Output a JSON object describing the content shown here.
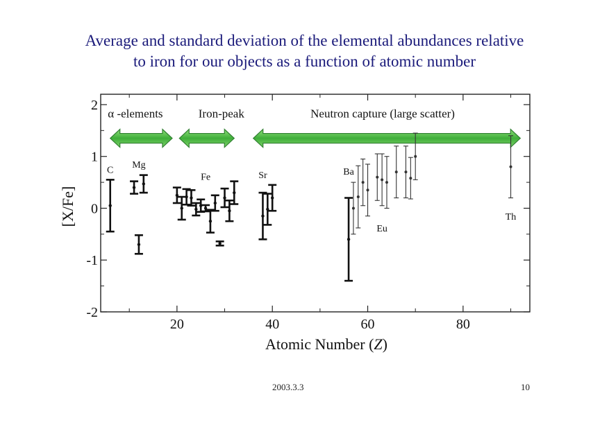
{
  "slide": {
    "title_line1": "Average and standard deviation of the elemental abundances relative",
    "title_line2": "to iron for our objects as a function of atomic number",
    "date": "2003.3.3",
    "page_number": "10",
    "title_color": "#1a1a7a"
  },
  "chart_data": {
    "type": "scatter",
    "title": "",
    "xlabel": "Atomic Number  (Z)",
    "ylabel": "[X/Fe]",
    "xlim": [
      4,
      94
    ],
    "ylim": [
      -2,
      2.2
    ],
    "x_ticks": [
      20,
      40,
      60,
      80
    ],
    "y_ticks": [
      -2,
      -1,
      0,
      1,
      2
    ],
    "x_tick_labels": [
      "20",
      "40",
      "60",
      "80"
    ],
    "y_tick_labels": [
      "-2",
      "-1",
      "0",
      "1",
      "2"
    ],
    "grid": false,
    "arrow_color": "#5cc050",
    "series": [
      {
        "points": [
          {
            "x": 6,
            "y": 0.05,
            "err": 0.5,
            "weight": "heavy"
          },
          {
            "x": 11,
            "y": 0.4,
            "err": 0.12,
            "weight": "heavy"
          },
          {
            "x": 12,
            "y": -0.7,
            "err": 0.18,
            "weight": "heavy"
          },
          {
            "x": 13,
            "y": 0.47,
            "err": 0.17,
            "weight": "heavy"
          },
          {
            "x": 20,
            "y": 0.25,
            "err": 0.15,
            "weight": "heavy"
          },
          {
            "x": 21,
            "y": 0.0,
            "err": 0.22,
            "weight": "heavy"
          },
          {
            "x": 22,
            "y": 0.22,
            "err": 0.15,
            "weight": "heavy"
          },
          {
            "x": 23,
            "y": 0.2,
            "err": 0.15,
            "weight": "heavy"
          },
          {
            "x": 24,
            "y": -0.02,
            "err": 0.12,
            "weight": "heavy"
          },
          {
            "x": 25,
            "y": 0.05,
            "err": 0.12,
            "weight": "heavy"
          },
          {
            "x": 26,
            "y": 0.0,
            "err": 0.06,
            "weight": "heavy"
          },
          {
            "x": 27,
            "y": -0.25,
            "err": 0.22,
            "weight": "heavy"
          },
          {
            "x": 28,
            "y": 0.1,
            "err": 0.15,
            "weight": "heavy"
          },
          {
            "x": 29,
            "y": -0.68,
            "err": 0.04,
            "weight": "heavy"
          },
          {
            "x": 30,
            "y": 0.2,
            "err": 0.18,
            "weight": "heavy"
          },
          {
            "x": 31,
            "y": -0.05,
            "err": 0.2,
            "weight": "heavy"
          },
          {
            "x": 32,
            "y": 0.3,
            "err": 0.22,
            "weight": "heavy"
          },
          {
            "x": 38,
            "y": -0.15,
            "err": 0.45,
            "weight": "heavy"
          },
          {
            "x": 39,
            "y": -0.02,
            "err": 0.3,
            "weight": "heavy"
          },
          {
            "x": 40,
            "y": 0.2,
            "err": 0.25,
            "weight": "heavy"
          },
          {
            "x": 56,
            "y": -0.6,
            "err": 0.8,
            "weight": "heavy"
          },
          {
            "x": 57,
            "y": 0.0,
            "err": 0.5,
            "weight": "light"
          },
          {
            "x": 58,
            "y": 0.22,
            "err": 0.6,
            "weight": "light"
          },
          {
            "x": 59,
            "y": 0.5,
            "err": 0.45,
            "weight": "light"
          },
          {
            "x": 60,
            "y": 0.35,
            "err": 0.5,
            "weight": "light"
          },
          {
            "x": 62,
            "y": 0.6,
            "err": 0.45,
            "weight": "light"
          },
          {
            "x": 63,
            "y": 0.55,
            "err": 0.5,
            "weight": "light"
          },
          {
            "x": 64,
            "y": 0.5,
            "err": 0.5,
            "weight": "light"
          },
          {
            "x": 66,
            "y": 0.7,
            "err": 0.5,
            "weight": "light"
          },
          {
            "x": 68,
            "y": 0.7,
            "err": 0.5,
            "weight": "light"
          },
          {
            "x": 69,
            "y": 0.58,
            "err": 0.4,
            "weight": "light"
          },
          {
            "x": 70,
            "y": 1.0,
            "err": 0.45,
            "weight": "light"
          },
          {
            "x": 90,
            "y": 0.8,
            "err": 0.6,
            "weight": "light"
          }
        ]
      }
    ],
    "element_labels": [
      {
        "text": "C",
        "x": 6,
        "y": 0.68
      },
      {
        "text": "Mg",
        "x": 12,
        "y": 0.78
      },
      {
        "text": "Fe",
        "x": 26,
        "y": 0.55
      },
      {
        "text": "Sr",
        "x": 38,
        "y": 0.58
      },
      {
        "text": "Ba",
        "x": 56,
        "y": 0.65
      },
      {
        "text": "Eu",
        "x": 63,
        "y": -0.45
      },
      {
        "text": "Th",
        "x": 90,
        "y": -0.22
      }
    ],
    "group_labels": [
      {
        "text": "α -elements",
        "x": 5.5,
        "y": 1.75
      },
      {
        "text": "Iron-peak",
        "x": 24.5,
        "y": 1.75
      },
      {
        "text": "Neutron capture (large scatter)",
        "x": 48,
        "y": 1.75
      }
    ],
    "range_arrows": [
      {
        "from": 6,
        "to": 19
      },
      {
        "from": 20.5,
        "to": 32
      },
      {
        "from": 36,
        "to": 92
      }
    ]
  }
}
